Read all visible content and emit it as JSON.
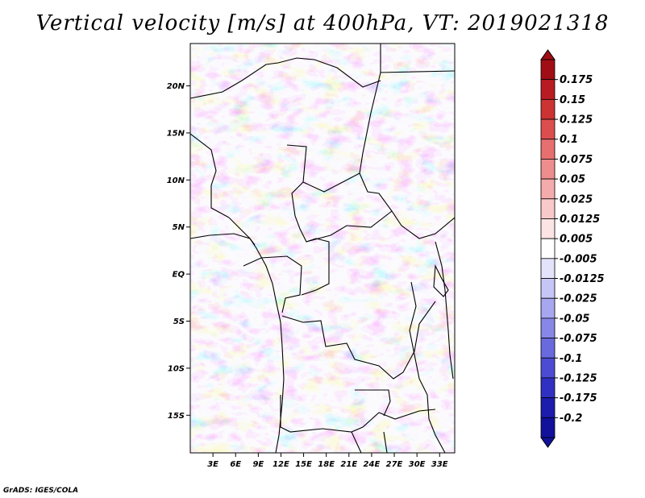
{
  "title": "Vertical velocity [m/s] at 400hPa, VT: 2019021318",
  "footer": "GrADS: IGES/COLA",
  "map": {
    "lat_labels": [
      "20N",
      "15N",
      "10N",
      "5N",
      "EQ",
      "5S",
      "10S",
      "15S"
    ],
    "lat_values": [
      20,
      15,
      10,
      5,
      0,
      -5,
      -10,
      -15
    ],
    "lon_labels": [
      "3E",
      "6E",
      "9E",
      "12E",
      "15E",
      "18E",
      "21E",
      "24E",
      "27E",
      "30E",
      "33E"
    ],
    "lon_values": [
      3,
      6,
      9,
      12,
      15,
      18,
      21,
      24,
      27,
      30,
      33
    ],
    "lon_range": [
      0,
      35
    ],
    "lat_range": [
      -19,
      24.5
    ]
  },
  "colorbar": {
    "labels": [
      "0.175",
      "0.15",
      "0.125",
      "0.1",
      "0.075",
      "0.05",
      "0.025",
      "0.0125",
      "0.005",
      "-0.005",
      "-0.0125",
      "-0.025",
      "-0.05",
      "-0.075",
      "-0.1",
      "-0.125",
      "-0.175",
      "-0.2"
    ],
    "colors": [
      "#a00d14",
      "#b81c22",
      "#cc3333",
      "#dc4e4e",
      "#e76f6f",
      "#ee8d8d",
      "#f4abab",
      "#f8c9c9",
      "#fce4e4",
      "#ffffff",
      "#e3e3fb",
      "#c6c6f6",
      "#a7a7f0",
      "#8787e8",
      "#6a6adf",
      "#4c4cd3",
      "#3030c3",
      "#1c1cad",
      "#11119b"
    ]
  }
}
